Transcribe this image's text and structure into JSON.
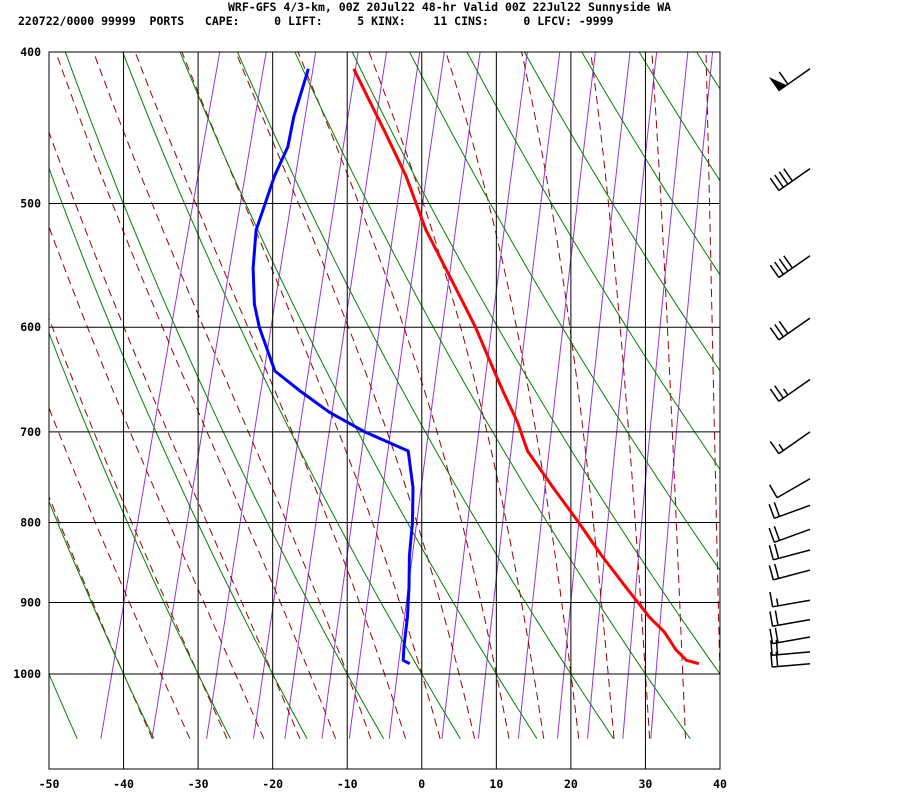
{
  "header": {
    "title": "WRF-GFS 4/3-km, 00Z 20Jul22 48-hr Valid 00Z 22Jul22 Sunnyside WA",
    "stats": "220722/0000 99999  PORTS   CAPE:     0 LIFT:     5 KINX:    11 CINS:     0 LFCV: -9999"
  },
  "colors": {
    "temperature": "#ff0000",
    "dewpoint": "#0000ff",
    "isotherm_grid": "#000000",
    "dry_adiabat": "#008000",
    "moist_adiabat": "#990000",
    "mixing_ratio": "#9933cc",
    "wind_barb": "#000000"
  },
  "chart_data": {
    "type": "line",
    "title": "",
    "xlabel": "",
    "ylabel": "",
    "x_axis": {
      "min": -50,
      "max": 40,
      "ticks": [
        -50,
        -40,
        -30,
        -20,
        -10,
        0,
        10,
        20,
        30,
        40
      ]
    },
    "y_axis": {
      "scale": "log",
      "reverse": true,
      "min": 1040,
      "max": 400,
      "ticks": [
        400,
        500,
        600,
        700,
        800,
        900,
        1000
      ]
    },
    "grid": true,
    "series": [
      {
        "role": "temperature",
        "points": [
          [
            985,
            36.8
          ],
          [
            980,
            35.0
          ],
          [
            965,
            33.2
          ],
          [
            940,
            31.0
          ],
          [
            920,
            28.5
          ],
          [
            880,
            24.2
          ],
          [
            840,
            19.8
          ],
          [
            800,
            15.5
          ],
          [
            760,
            10.8
          ],
          [
            720,
            6.0
          ],
          [
            690,
            3.6
          ],
          [
            660,
            0.6
          ],
          [
            630,
            -2.4
          ],
          [
            600,
            -5.5
          ],
          [
            560,
            -10.4
          ],
          [
            520,
            -15.7
          ],
          [
            480,
            -20.4
          ],
          [
            450,
            -24.8
          ],
          [
            430,
            -28.0
          ],
          [
            410,
            -31.3
          ]
        ]
      },
      {
        "role": "dewpoint",
        "points": [
          [
            985,
            -2.0
          ],
          [
            980,
            -3.0
          ],
          [
            960,
            -3.4
          ],
          [
            920,
            -4.0
          ],
          [
            880,
            -4.9
          ],
          [
            840,
            -6.0
          ],
          [
            800,
            -6.8
          ],
          [
            760,
            -8.0
          ],
          [
            720,
            -10.0
          ],
          [
            700,
            -16.5
          ],
          [
            680,
            -22.0
          ],
          [
            660,
            -26.5
          ],
          [
            640,
            -30.8
          ],
          [
            600,
            -34.5
          ],
          [
            580,
            -36.0
          ],
          [
            550,
            -37.5
          ],
          [
            520,
            -38.5
          ],
          [
            480,
            -38.0
          ],
          [
            460,
            -37.3
          ],
          [
            440,
            -37.6
          ],
          [
            410,
            -37.4
          ]
        ]
      }
    ],
    "wind_barbs": [
      {
        "p": 410,
        "dir": 235,
        "speed_kt": 60
      },
      {
        "p": 475,
        "dir": 235,
        "speed_kt": 40
      },
      {
        "p": 540,
        "dir": 235,
        "speed_kt": 40
      },
      {
        "p": 592,
        "dir": 235,
        "speed_kt": 30
      },
      {
        "p": 648,
        "dir": 235,
        "speed_kt": 25
      },
      {
        "p": 700,
        "dir": 235,
        "speed_kt": 15
      },
      {
        "p": 750,
        "dir": 240,
        "speed_kt": 10
      },
      {
        "p": 780,
        "dir": 250,
        "speed_kt": 20
      },
      {
        "p": 808,
        "dir": 250,
        "speed_kt": 20
      },
      {
        "p": 833,
        "dir": 255,
        "speed_kt": 20
      },
      {
        "p": 858,
        "dir": 255,
        "speed_kt": 20
      },
      {
        "p": 897,
        "dir": 260,
        "speed_kt": 15
      },
      {
        "p": 923,
        "dir": 260,
        "speed_kt": 20
      },
      {
        "p": 947,
        "dir": 260,
        "speed_kt": 20
      },
      {
        "p": 968,
        "dir": 265,
        "speed_kt": 20
      },
      {
        "p": 985,
        "dir": 265,
        "speed_kt": 20
      }
    ]
  }
}
